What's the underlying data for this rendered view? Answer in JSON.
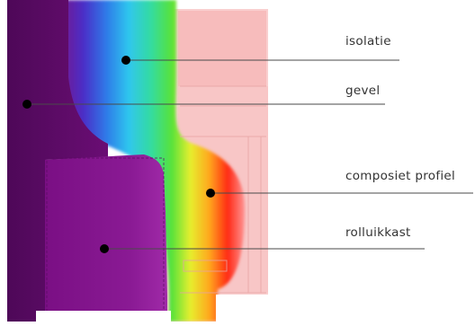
{
  "callouts": [
    {
      "id": "isolatie",
      "label": "isolatie"
    },
    {
      "id": "gevel",
      "label": "gevel"
    },
    {
      "id": "composiet",
      "label": "composiet profiel"
    },
    {
      "id": "rolluikkast",
      "label": "rolluikkast"
    }
  ],
  "colors": {
    "gevel": "#5a0a63",
    "rolluikkast": "#7a0f80",
    "window_frame": "#f7c2c2",
    "leader_line": "#4a4a4a",
    "marker": "#000000",
    "thermal_gradient": [
      "#7a1488",
      "#3a3fd8",
      "#2fb3f0",
      "#2ed6b0",
      "#4ee04a",
      "#e8ee2e",
      "#ffb020",
      "#ff3a1a",
      "#ff8a8a"
    ]
  }
}
